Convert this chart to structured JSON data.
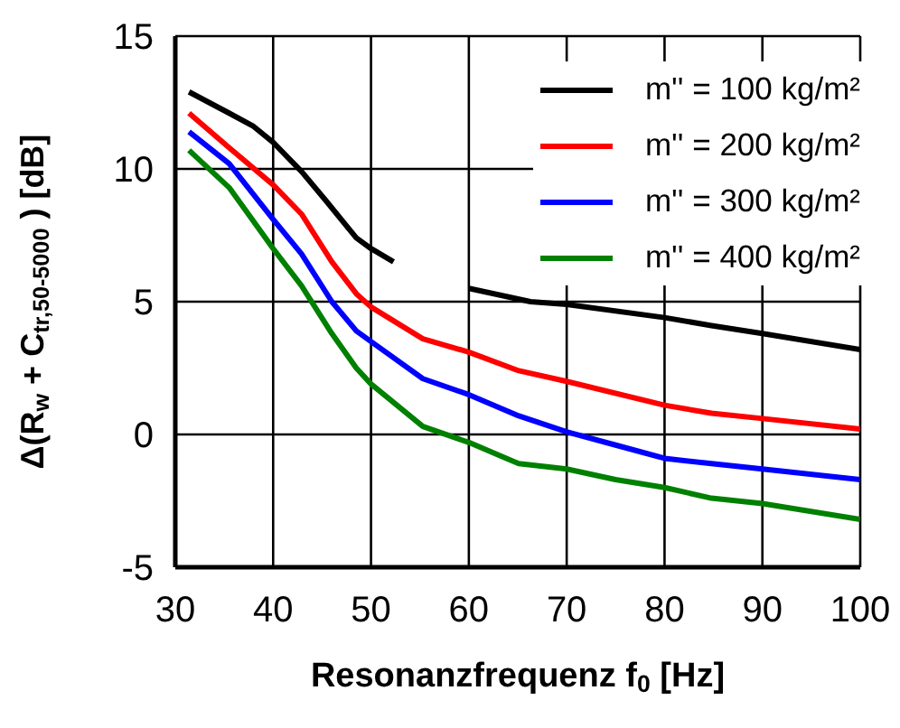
{
  "chart_data": {
    "type": "line",
    "xlabel": "Resonanzfrequenz f$_{0}$ [Hz]",
    "ylabel": "Δ(R$_{w}$ + C$_{tr,50-5000}$) [dB]",
    "xlim": [
      30,
      100
    ],
    "xticks": [
      30,
      40,
      50,
      60,
      70,
      80,
      90,
      100
    ],
    "ylim": [
      -5,
      15
    ],
    "yticks": [
      -5,
      0,
      5,
      10,
      15
    ],
    "grid": true,
    "legend": "top right",
    "marker": "none",
    "line_style": "solid",
    "series": [
      {
        "name": "m'' = 100 kg/m²",
        "color": "#000000",
        "x": [
          31.4,
          35.5,
          38,
          40,
          42.9,
          45.4,
          48.5,
          50,
          52.3,
          56,
          60,
          66.3,
          70,
          80,
          84.8,
          90,
          100
        ],
        "values": [
          12.9,
          12.1,
          11.6,
          11.0,
          9.9,
          8.8,
          7.4,
          7.0,
          6.5,
          null,
          5.5,
          5.0,
          4.9,
          4.4,
          4.1,
          3.8,
          3.2
        ]
      },
      {
        "name": "m'' = 200 kg/m²",
        "color": "#ff0000",
        "x": [
          31.4,
          35.5,
          40,
          42.9,
          46,
          48.5,
          50,
          55.3,
          60,
          65.1,
          70,
          80,
          84.8,
          90,
          100
        ],
        "values": [
          12.1,
          10.8,
          9.4,
          8.3,
          6.5,
          5.3,
          4.8,
          3.6,
          3.1,
          2.4,
          2.0,
          1.1,
          0.8,
          0.6,
          0.2
        ]
      },
      {
        "name": "m'' = 300 kg/m²",
        "color": "#0000ff",
        "x": [
          31.4,
          35.5,
          40,
          42.9,
          46,
          48.5,
          50,
          55.3,
          60,
          65.1,
          70,
          75,
          80,
          84.8,
          90,
          100
        ],
        "values": [
          11.4,
          10.2,
          8.1,
          6.8,
          5.0,
          3.9,
          3.5,
          2.1,
          1.5,
          0.7,
          0.1,
          -0.4,
          -0.9,
          -1.1,
          -1.3,
          -1.7
        ]
      },
      {
        "name": "m'' = 400 kg/m²",
        "color": "#008000",
        "x": [
          31.4,
          35.5,
          40,
          42.9,
          46,
          48.5,
          50,
          55.3,
          60,
          65.1,
          70,
          75,
          80,
          84.8,
          90,
          100
        ],
        "values": [
          10.7,
          9.3,
          7.0,
          5.6,
          3.8,
          2.5,
          1.9,
          0.3,
          -0.3,
          -1.1,
          -1.3,
          -1.7,
          -2.0,
          -2.4,
          -2.6,
          -3.2
        ]
      }
    ]
  }
}
